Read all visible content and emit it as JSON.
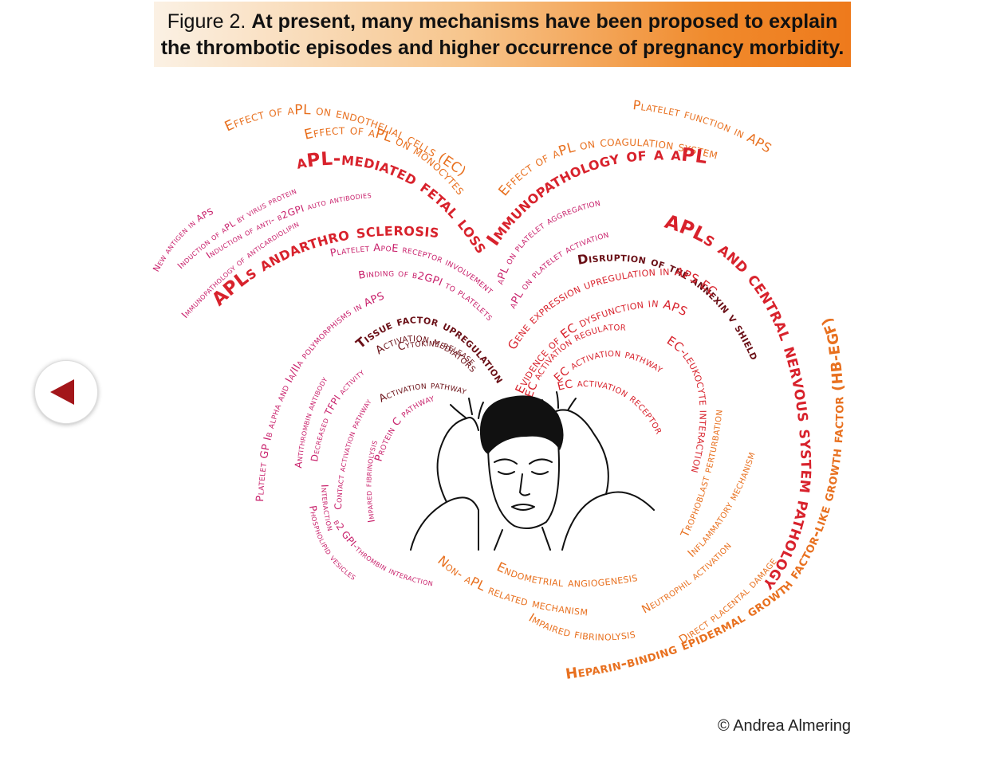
{
  "header": {
    "figure_label": "Figure 2.",
    "title_line1": "At present, many mechanisms have been proposed to explain",
    "title_line2": "the thrombotic episodes and higher occurrence of pregnancy morbidity."
  },
  "nav": {
    "back_icon": "left-triangle-icon"
  },
  "colors": {
    "red": "#d8222c",
    "magenta": "#c81f6a",
    "orange": "#e8701f",
    "dark": "#6a0f16",
    "back_arrow": "#a3161a"
  },
  "words": {
    "w01": "Effect of aPL on endothelial cells (EC)",
    "w02": "Effect of aPL on monocytes",
    "w03": "aPL-mediated fetal loss",
    "w04": "Induction of aPL by virus protein",
    "w05": "New antigen in APS",
    "w06": "Induction of anti- β2GPI auto antibodies",
    "w07": "Immunopathology of anticardiolipin",
    "w08": "APLs andarthro sclerosis",
    "w09": "Platelet ApoE receptor involvement",
    "w10": "Binding of β2GPI to platelets",
    "w11": "Platelet function in APS",
    "w12": "Effect of aPL on coagulation system",
    "w13": "Immunopathology of a aPL",
    "w14": "aPL on platelet aggregation",
    "w15": "aPL on platelet activation",
    "w16": "Disruption of the annexin v shield",
    "w17": "APLs and central nervous system pathology",
    "w18": "Heparin-binding epidermal growth factor-like growth factor (HB-EGF)",
    "w19": "Gene expression upregulation in APS EC",
    "w20": "Evidence of EC dysfunction in APS",
    "w21": "EC activation regulator",
    "w22": "EC activation pathway",
    "w23": "EC activation receptor",
    "w24": "EC-leukocyte interaction",
    "w25": "Platelet GP Ib alpha and Ia/IIa polymorphisms in APS",
    "w26": "Tissue factor upregulation",
    "w27": "Activation mediators",
    "w28": "Cytokine release",
    "w29": "Activation pathway",
    "w30": "Protein C pathway",
    "w31": "Antithrombin antibody",
    "w32": "Decreased TFPI activity",
    "w33": "Contact activation pathway",
    "w34": "Impared fibrinolysis",
    "w35": "Phospholipid vesicles",
    "w36": "Interaction",
    "w37": "β2 GPI-thrombin interaction",
    "w38": "Non- aPL related mechanism",
    "w39": "Endometrial angiogenesis",
    "w40": "Impaired fibrinolysis",
    "w41": "Trophoblast perturbation",
    "w42": "Inflammatory mechanism",
    "w43": "Neutrophil activation",
    "w44": "Direct placental damage"
  },
  "credit": "© Andrea Almering"
}
